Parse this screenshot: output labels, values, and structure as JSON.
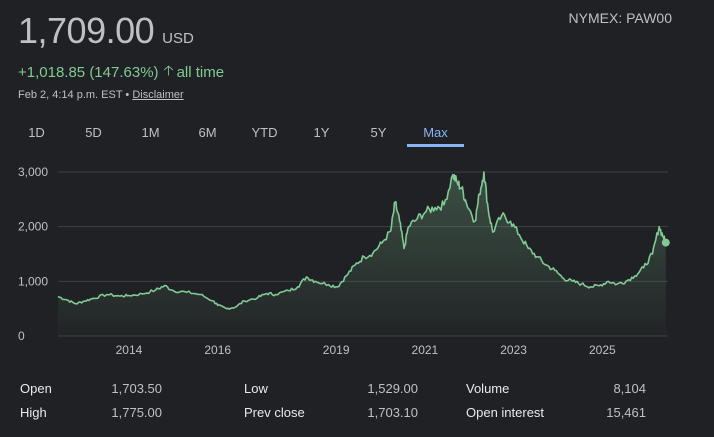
{
  "quote": {
    "price": "1,709.00",
    "currency": "USD",
    "ticker": "NYMEX: PAW00",
    "change": "+1,018.85 (147.63%)",
    "change_period": "all time",
    "timestamp": "Feb 2, 4:14 p.m. EST",
    "separator": "•",
    "disclaimer": "Disclaimer"
  },
  "tabs": [
    {
      "label": "1D"
    },
    {
      "label": "5D"
    },
    {
      "label": "1M"
    },
    {
      "label": "6M"
    },
    {
      "label": "YTD"
    },
    {
      "label": "1Y"
    },
    {
      "label": "5Y"
    },
    {
      "label": "Max",
      "active": true
    }
  ],
  "stats": [
    {
      "label": "Open",
      "value": "1,703.50"
    },
    {
      "label": "High",
      "value": "1,775.00"
    },
    {
      "label": "Low",
      "value": "1,529.00"
    },
    {
      "label": "Prev close",
      "value": "1,703.10"
    },
    {
      "label": "Volume",
      "value": "8,104"
    },
    {
      "label": "Open interest",
      "value": "15,461"
    }
  ],
  "colors": {
    "line": "#81c995",
    "accent": "#8ab4f8",
    "background": "#202124"
  },
  "chart_data": {
    "type": "area",
    "x_tick_labels": [
      "2014",
      "2016",
      "2019",
      "2021",
      "2023",
      "2025"
    ],
    "y_tick_labels": [
      "3,000",
      "2,000",
      "1,000",
      "0"
    ],
    "ylim": [
      0,
      3000
    ],
    "xlim": [
      2012.4,
      2026.15
    ],
    "grid": true,
    "points": [
      [
        2012.4,
        720
      ],
      [
        2012.6,
        660
      ],
      [
        2012.8,
        590
      ],
      [
        2013.0,
        640
      ],
      [
        2013.2,
        690
      ],
      [
        2013.5,
        760
      ],
      [
        2013.8,
        730
      ],
      [
        2014.0,
        740
      ],
      [
        2014.3,
        770
      ],
      [
        2014.6,
        840
      ],
      [
        2014.8,
        920
      ],
      [
        2015.0,
        830
      ],
      [
        2015.3,
        800
      ],
      [
        2015.6,
        760
      ],
      [
        2015.9,
        640
      ],
      [
        2016.0,
        560
      ],
      [
        2016.2,
        500
      ],
      [
        2016.4,
        530
      ],
      [
        2016.6,
        640
      ],
      [
        2016.9,
        700
      ],
      [
        2017.1,
        780
      ],
      [
        2017.3,
        760
      ],
      [
        2017.6,
        830
      ],
      [
        2017.8,
        900
      ],
      [
        2018.0,
        1080
      ],
      [
        2018.2,
        1000
      ],
      [
        2018.5,
        940
      ],
      [
        2018.7,
        900
      ],
      [
        2018.9,
        1100
      ],
      [
        2019.1,
        1300
      ],
      [
        2019.3,
        1450
      ],
      [
        2019.5,
        1520
      ],
      [
        2019.7,
        1700
      ],
      [
        2019.9,
        1920
      ],
      [
        2020.0,
        2450
      ],
      [
        2020.1,
        2100
      ],
      [
        2020.2,
        1600
      ],
      [
        2020.3,
        2000
      ],
      [
        2020.5,
        2150
      ],
      [
        2020.7,
        2280
      ],
      [
        2020.9,
        2350
      ],
      [
        2021.1,
        2400
      ],
      [
        2021.3,
        2950
      ],
      [
        2021.4,
        2800
      ],
      [
        2021.5,
        2700
      ],
      [
        2021.6,
        2450
      ],
      [
        2021.8,
        2100
      ],
      [
        2021.9,
        2600
      ],
      [
        2022.0,
        3000
      ],
      [
        2022.1,
        2300
      ],
      [
        2022.2,
        1900
      ],
      [
        2022.4,
        2200
      ],
      [
        2022.6,
        2100
      ],
      [
        2022.8,
        1850
      ],
      [
        2023.0,
        1600
      ],
      [
        2023.2,
        1450
      ],
      [
        2023.4,
        1300
      ],
      [
        2023.6,
        1200
      ],
      [
        2023.8,
        1050
      ],
      [
        2024.0,
        1000
      ],
      [
        2024.2,
        950
      ],
      [
        2024.4,
        900
      ],
      [
        2024.6,
        920
      ],
      [
        2024.8,
        1000
      ],
      [
        2025.0,
        950
      ],
      [
        2025.2,
        1000
      ],
      [
        2025.4,
        1100
      ],
      [
        2025.6,
        1250
      ],
      [
        2025.8,
        1500
      ],
      [
        2025.95,
        2000
      ],
      [
        2026.05,
        1800
      ],
      [
        2026.1,
        1709
      ]
    ]
  }
}
